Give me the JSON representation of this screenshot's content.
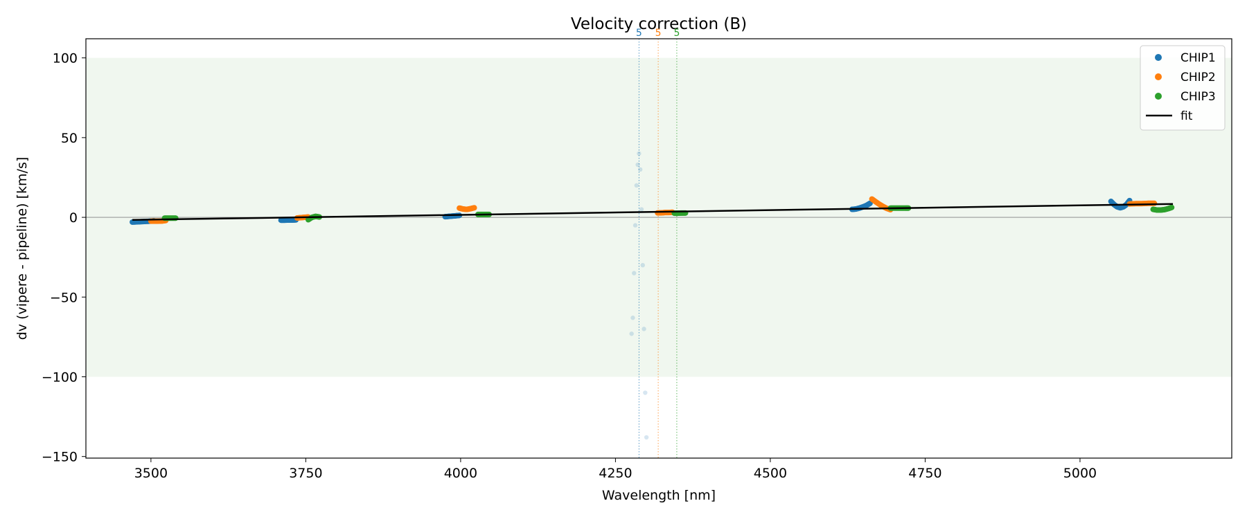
{
  "chart_data": {
    "type": "scatter",
    "title": "Velocity correction (B)",
    "xlabel": "Wavelength [nm]",
    "ylabel": "dv (vipere - pipeline) [km/s]",
    "xlim": [
      3395,
      5245
    ],
    "ylim": [
      -151,
      112
    ],
    "xticks": [
      3500,
      3750,
      4000,
      4250,
      4500,
      4750,
      5000
    ],
    "yticks": [
      -150,
      -100,
      -50,
      0,
      50,
      100
    ],
    "xtick_labels": [
      "3500",
      "3750",
      "4000",
      "4250",
      "4500",
      "4750",
      "5000"
    ],
    "ytick_labels": [
      "−150",
      "−100",
      "−50",
      "0",
      "50",
      "100"
    ],
    "band": [
      -100,
      100
    ],
    "band_color": "#f0f7ef",
    "zero_line": 0,
    "legend_position": "top-right",
    "series": [
      {
        "name": "CHIP1",
        "color": "#1f77b4",
        "segments": [
          {
            "x": [
              3470,
              3480,
              3490,
              3500,
              3505
            ],
            "y": [
              -3,
              -2.8,
              -2.6,
              -2.4,
              -2.2
            ]
          },
          {
            "x": [
              3710,
              3716,
              3722,
              3728,
              3734
            ],
            "y": [
              -1.8,
              -1.8,
              -1.7,
              -1.7,
              -1.6
            ]
          },
          {
            "x": [
              3975,
              3981,
              3987,
              3993,
              3998
            ],
            "y": [
              0.4,
              0.6,
              0.8,
              1,
              1.2
            ]
          },
          {
            "x": [
              4632,
              4638,
              4644,
              4650,
              4656,
              4661
            ],
            "y": [
              5,
              5.2,
              5.8,
              6.6,
              7.6,
              8.8
            ]
          },
          {
            "x": [
              5050,
              5055,
              5060,
              5065,
              5070,
              5075,
              5080
            ],
            "y": [
              10,
              8,
              6.6,
              6,
              6.6,
              8,
              10.5
            ]
          }
        ],
        "faint": {
          "x": [
            4276,
            4278,
            4280,
            4282,
            4284,
            4286,
            4288,
            4290,
            4292,
            4294,
            4296,
            4298,
            4300
          ],
          "y": [
            -73,
            -63,
            -35,
            -5,
            20,
            33,
            40,
            30,
            5,
            -30,
            -70,
            -110,
            -138
          ]
        }
      },
      {
        "name": "CHIP2",
        "color": "#ff7f0e",
        "segments": [
          {
            "x": [
              3500,
              3506,
              3512,
              3518,
              3524
            ],
            "y": [
              -2.4,
              -2.4,
              -2.4,
              -2.3,
              -2
            ]
          },
          {
            "x": [
              3736,
              3742,
              3748,
              3754
            ],
            "y": [
              -0.4,
              -0.2,
              0,
              0.2
            ]
          },
          {
            "x": [
              3998,
              4004,
              4010,
              4016,
              4022
            ],
            "y": [
              5.8,
              5.2,
              5,
              5.4,
              6
            ]
          },
          {
            "x": [
              4318,
              4324,
              4330,
              4336,
              4342
            ],
            "y": [
              2.8,
              2.8,
              3,
              3,
              3.2
            ]
          },
          {
            "x": [
              4664,
              4670,
              4676,
              4682,
              4688,
              4694
            ],
            "y": [
              11.5,
              9.8,
              8.2,
              6.8,
              5.6,
              4.8
            ]
          },
          {
            "x": [
              5080,
              5090,
              5100,
              5110,
              5120
            ],
            "y": [
              8.4,
              8.6,
              8.6,
              8.8,
              8.8
            ]
          }
        ],
        "faint": {
          "x": [],
          "y": []
        }
      },
      {
        "name": "CHIP3",
        "color": "#2ca02c",
        "segments": [
          {
            "x": [
              3522,
              3528,
              3534,
              3540
            ],
            "y": [
              -0.5,
              -0.5,
              -0.5,
              -0.5
            ]
          },
          {
            "x": [
              3754,
              3760,
              3766,
              3772
            ],
            "y": [
              -1.5,
              0,
              0.6,
              0.2
            ]
          },
          {
            "x": [
              4028,
              4034,
              4040,
              4046
            ],
            "y": [
              1.8,
              1.8,
              1.8,
              1.8
            ]
          },
          {
            "x": [
              4345,
              4351,
              4357,
              4363
            ],
            "y": [
              2.6,
              2.6,
              2.7,
              2.7
            ]
          },
          {
            "x": [
              4694,
              4700,
              4706,
              4712,
              4718,
              4723
            ],
            "y": [
              5.8,
              5.8,
              5.8,
              5.8,
              5.8,
              5.8
            ]
          },
          {
            "x": [
              5118,
              5124,
              5130,
              5136,
              5142,
              5148
            ],
            "y": [
              5,
              4.6,
              4.6,
              4.8,
              5.4,
              6.2
            ]
          }
        ],
        "faint": {
          "x": [],
          "y": []
        }
      }
    ],
    "fit": {
      "name": "fit",
      "color": "#000000",
      "x": [
        3470,
        5150
      ],
      "y": [
        -1.6,
        8.4
      ]
    },
    "vlines": [
      {
        "x": 4288,
        "label": "5",
        "color": "#1f77b4"
      },
      {
        "x": 4319,
        "label": "5",
        "color": "#ff7f0e"
      },
      {
        "x": 4349,
        "label": "5",
        "color": "#2ca02c"
      }
    ]
  }
}
